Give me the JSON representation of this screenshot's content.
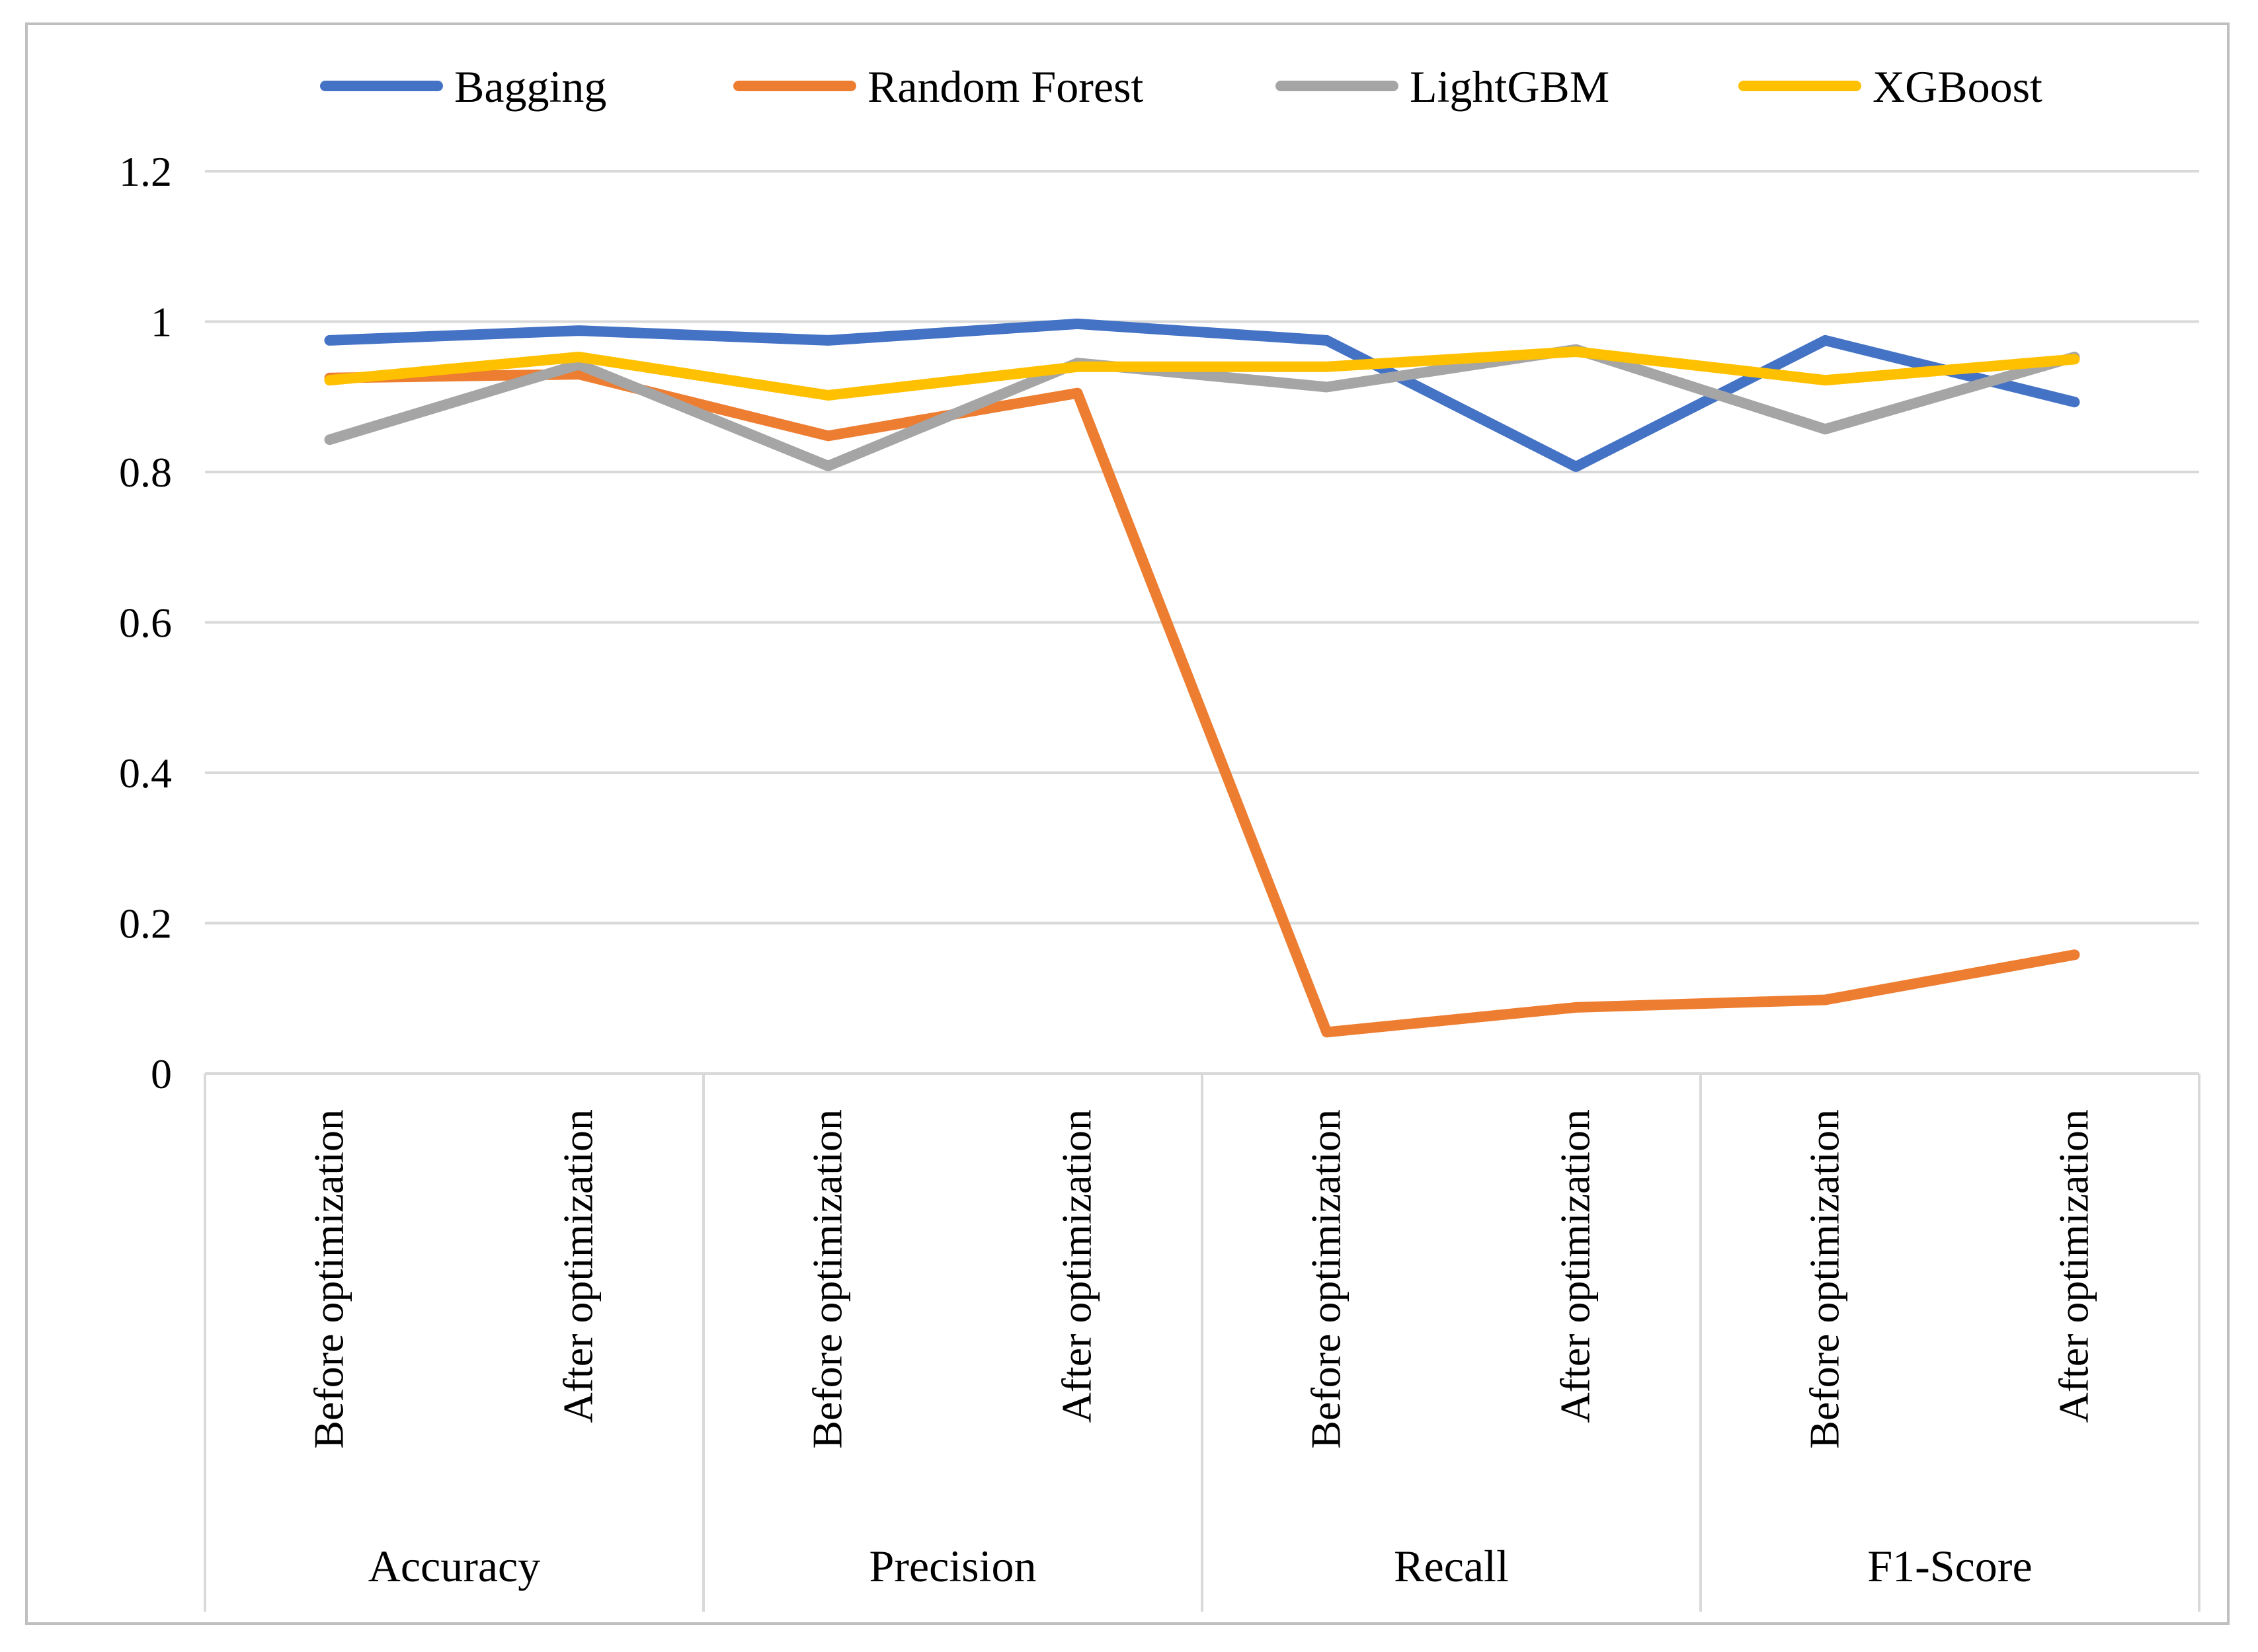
{
  "chart_data": {
    "type": "line",
    "categories": [
      "Before optimization",
      "After optimization",
      "Before optimization",
      "After optimization",
      "Before optimization",
      "After optimization",
      "Before optimization",
      "After optimization"
    ],
    "groups": [
      "Accuracy",
      "Precision",
      "Recall",
      "F1-Score"
    ],
    "series": [
      {
        "name": "Bagging",
        "color": "#4472c4",
        "values": [
          0.975,
          0.988,
          0.975,
          0.997,
          0.975,
          0.807,
          0.975,
          0.893
        ]
      },
      {
        "name": "Random Forest",
        "color": "#ed7d31",
        "values": [
          0.925,
          0.93,
          0.848,
          0.905,
          0.055,
          0.088,
          0.098,
          0.158
        ]
      },
      {
        "name": "LightGBM",
        "color": "#a5a5a5",
        "values": [
          0.843,
          0.943,
          0.808,
          0.945,
          0.913,
          0.963,
          0.857,
          0.953
        ]
      },
      {
        "name": "XGBoost",
        "color": "#ffc000",
        "values": [
          0.922,
          0.953,
          0.902,
          0.94,
          0.94,
          0.96,
          0.922,
          0.95
        ]
      }
    ],
    "yticks": [
      "0",
      "0.2",
      "0.4",
      "0.6",
      "0.8",
      "1",
      "1.2"
    ],
    "ylim": [
      0,
      1.2
    ],
    "grid": true,
    "legend": "top"
  }
}
